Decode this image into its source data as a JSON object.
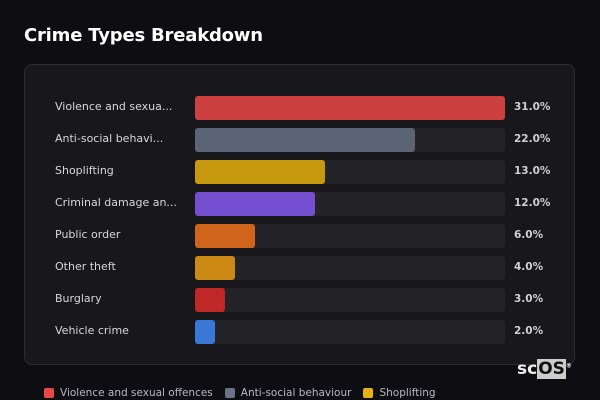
{
  "title": "Crime Types Breakdown",
  "chart_data": {
    "type": "bar",
    "orientation": "horizontal",
    "categories": [
      "Violence and sexua...",
      "Anti-social behavi...",
      "Shoplifting",
      "Criminal damage an...",
      "Public order",
      "Other theft",
      "Burglary",
      "Vehicle crime"
    ],
    "values": [
      31.0,
      22.0,
      13.0,
      12.0,
      6.0,
      4.0,
      3.0,
      2.0
    ],
    "value_labels": [
      "31.0%",
      "22.0%",
      "13.0%",
      "12.0%",
      "6.0%",
      "4.0%",
      "3.0%",
      "2.0%"
    ],
    "colors": [
      "#cc4040",
      "#5a6474",
      "#c8980e",
      "#7450d0",
      "#d0641a",
      "#cc8a14",
      "#c02828",
      "#3a78d8"
    ],
    "xlim": [
      0,
      31
    ],
    "grid": false,
    "legend_position": "bottom"
  },
  "legend": [
    {
      "label": "Violence and sexual offences",
      "color": "#e84848"
    },
    {
      "label": "Anti-social behaviour",
      "color": "#6a7488"
    },
    {
      "label": "Shoplifting",
      "color": "#e8b010"
    }
  ],
  "logo": {
    "text_a": "sc",
    "text_b": "OS",
    "mark": "®"
  }
}
